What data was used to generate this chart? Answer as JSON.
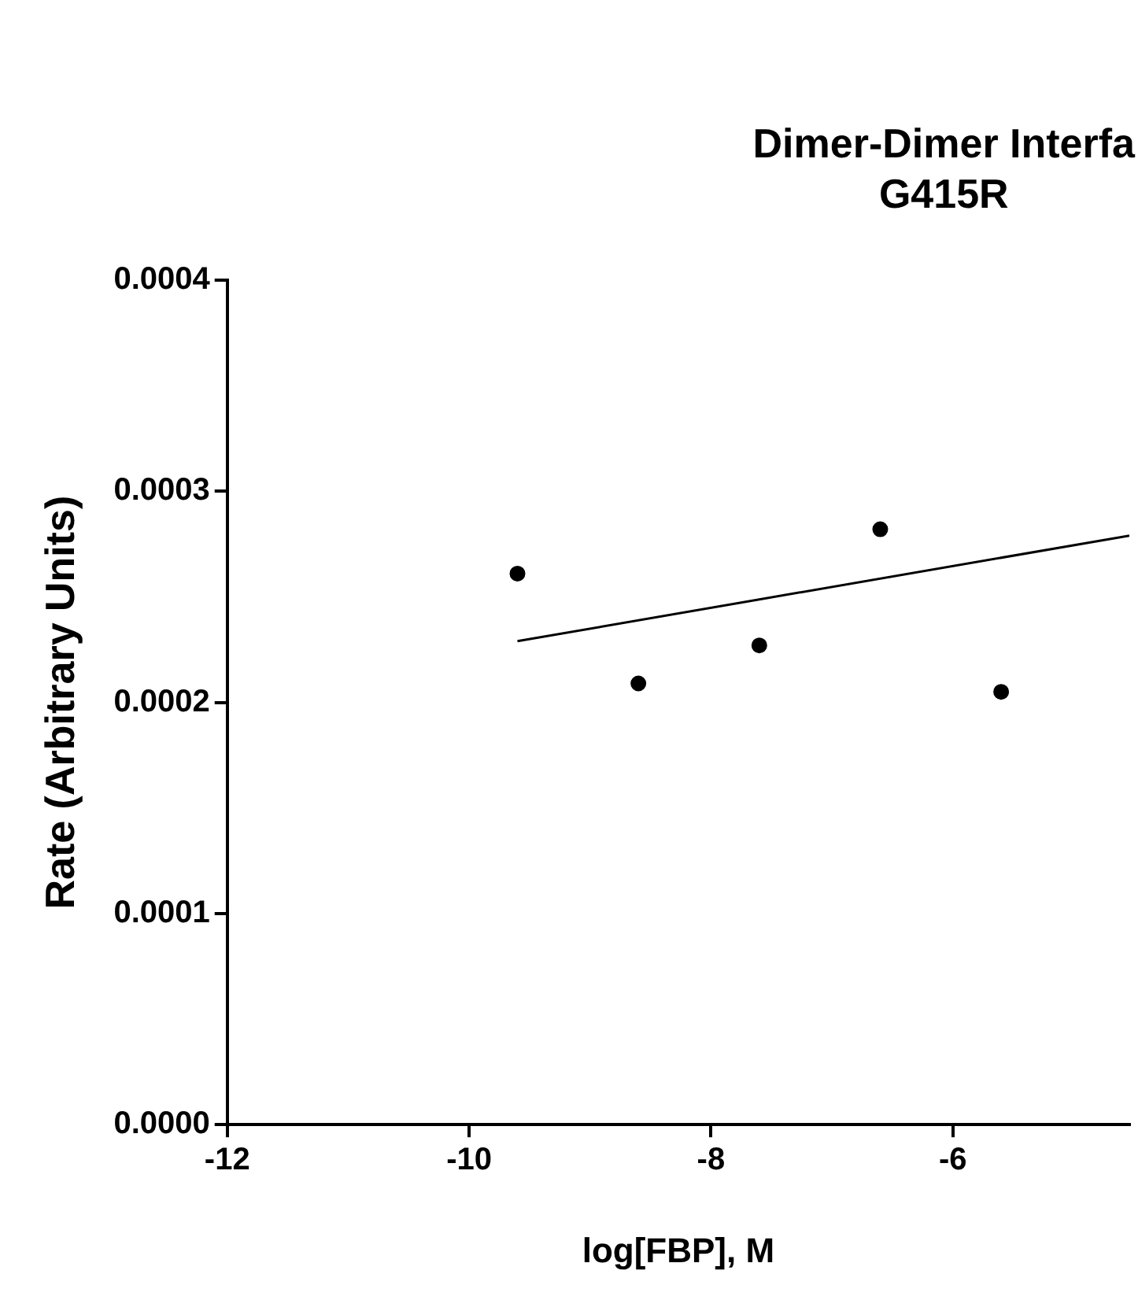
{
  "chart_data": {
    "type": "scatter",
    "title": "Dimer-Dimer Interfa",
    "subtitle": "G415R",
    "xlabel": "log[FBP], M",
    "ylabel": "Rate (Arbitrary Units)",
    "xlim": [
      -12,
      -4.54
    ],
    "xticks": [
      -12,
      -10,
      -8,
      -6
    ],
    "ylim": [
      0,
      0.0004
    ],
    "yticks": [
      {
        "value": 0,
        "label": "0.0000"
      },
      {
        "value": 0.0001,
        "label": "0.0001"
      },
      {
        "value": 0.0002,
        "label": "0.0002"
      },
      {
        "value": 0.0003,
        "label": "0.0003"
      },
      {
        "value": 0.0004,
        "label": "0.0004"
      }
    ],
    "grid": false,
    "legend": false,
    "marker": "circle",
    "series": [
      {
        "color": "#000000",
        "x": [
          -9.6,
          -8.6,
          -7.6,
          -6.6,
          -5.6
        ],
        "values": [
          0.000261,
          0.000209,
          0.000227,
          0.000282,
          0.000205
        ]
      },
      {
        "type": "line",
        "color": "#000000",
        "marker": "none",
        "x": [
          -9.6,
          -4.54
        ],
        "values": [
          0.000229,
          0.000279
        ]
      }
    ]
  }
}
